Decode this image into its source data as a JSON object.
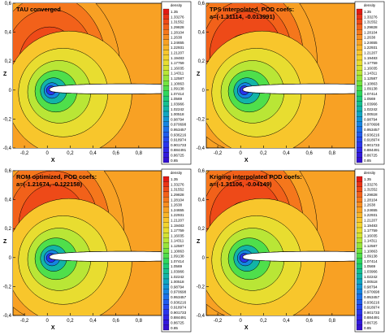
{
  "chart_data": [
    {
      "type": "heatmap",
      "title": "TAU converged",
      "subtitle": "",
      "xlabel": "X",
      "ylabel": "Z",
      "xlim": [
        -0.3,
        1.0
      ],
      "ylim": [
        -0.4,
        0.6
      ],
      "xticks": [
        "-0,2",
        "0",
        "0,2",
        "0,4",
        "0,6",
        "0,8"
      ],
      "yticks": [
        "0,6",
        "0,4",
        "0,2",
        "0",
        "-0,2",
        "-0,4"
      ],
      "legend_title": "density",
      "field": {
        "peak": 1.35,
        "peak_radius": 0.27,
        "peak_x": 0.02,
        "peak_z": 0.18
      }
    },
    {
      "type": "heatmap",
      "title": "TPS interpolated, POD coefs:",
      "subtitle": "a=(-1.31114, -0.013991)",
      "xlabel": "X",
      "ylabel": "Z",
      "xlim": [
        -0.3,
        1.0
      ],
      "ylim": [
        -0.4,
        0.6
      ],
      "xticks": [
        "-0,2",
        "0",
        "0,2",
        "0,4",
        "0,6",
        "0,8"
      ],
      "yticks": [
        "0,6",
        "0,4",
        "0,2",
        "0",
        "-0,2",
        "-0,4"
      ],
      "legend_title": "density",
      "field": {
        "peak": 1.35,
        "peak_radius": 0.32,
        "peak_x": 0.05,
        "peak_z": 0.24
      }
    },
    {
      "type": "heatmap",
      "title": "ROM optimized, POD coefs:",
      "subtitle": "a=(-1.21674, -0.122158)",
      "xlabel": "X",
      "ylabel": "Z",
      "xlim": [
        -0.3,
        1.0
      ],
      "ylim": [
        -0.4,
        0.6
      ],
      "xticks": [
        "-0,2",
        "0",
        "0,2",
        "0,4",
        "0,6",
        "0,8"
      ],
      "yticks": [
        "0,6",
        "0,4",
        "0,2",
        "0",
        "-0,2",
        "-0,4"
      ],
      "legend_title": "density",
      "field": {
        "peak": 1.35,
        "peak_radius": 0.3,
        "peak_x": 0.05,
        "peak_z": 0.22
      }
    },
    {
      "type": "heatmap",
      "title": "Kriging interpolated POD coefs:",
      "subtitle": "a=(-1.31106, -0.04149)",
      "xlabel": "X",
      "ylabel": "Z",
      "xlim": [
        -0.3,
        1.0
      ],
      "ylim": [
        -0.4,
        0.6
      ],
      "xticks": [
        "-0,2",
        "0",
        "0,2",
        "0,4",
        "0,6",
        "0,8"
      ],
      "yticks": [
        "0,6",
        "0,4",
        "0,2",
        "0",
        "-0,2",
        "-0,4"
      ],
      "legend_title": "density",
      "field": {
        "peak": 1.35,
        "peak_radius": 0.32,
        "peak_x": 0.05,
        "peak_z": 0.24
      }
    }
  ],
  "legend_levels": [
    "1.35",
    "1.33276",
    "1.31552",
    "1.29828",
    "1.28104",
    "1.2638",
    "1.24655",
    "1.22931",
    "1.21207",
    "1.19483",
    "1.17759",
    "1.16035",
    "1.14311",
    "1.12587",
    "1.10863",
    "1.09138",
    "1.07414",
    "1.0569",
    "1.03966",
    "1.02242",
    "1.00518",
    "0.98794",
    "0.970698",
    "0.953457",
    "0.936216",
    "0.918974",
    "0.901733",
    "0.884491",
    "0.86725",
    "0.85"
  ],
  "legend_colors": [
    "#e21a14",
    "#ea3316",
    "#ee4a18",
    "#f2611a",
    "#f5771c",
    "#f78d20",
    "#f8a124",
    "#f9b528",
    "#f8c62c",
    "#f3d42f",
    "#e8dd30",
    "#d4e332",
    "#b9e636",
    "#98e63b",
    "#74e441",
    "#4fdf4b",
    "#2fd65c",
    "#1ccb75",
    "#15c08f",
    "#12b4a8",
    "#11a6bf",
    "#1296d3",
    "#1584e1",
    "#1b70e9",
    "#205ced",
    "#2548ee",
    "#2a35ec",
    "#2e25e6",
    "#3118dc",
    "#330fd0"
  ]
}
